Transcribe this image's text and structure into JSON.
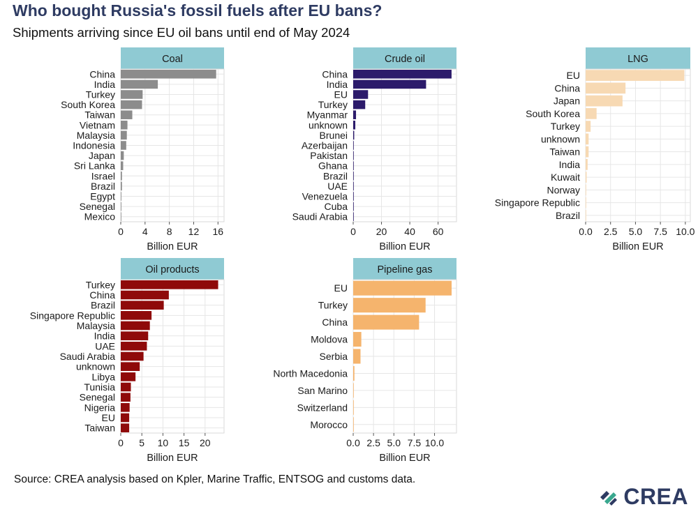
{
  "title": "Who bought Russia's fossil fuels after EU bans?",
  "subtitle": "Shipments arriving since EU oil bans until end of May 2024",
  "source": "Source: CREA analysis based on Kpler, Marine Traffic, ENTSOG and customs data.",
  "logo": {
    "text": "CREA"
  },
  "colors": {
    "strip_bg": "#8fcad3",
    "grid": "#e6e6e6",
    "panel_border": "#d9d9d9",
    "coal": "#8c8c8c",
    "crude_oil": "#2c1b6b",
    "lng": "#f7d9b3",
    "oil_products": "#8f0a0a",
    "pipeline_gas": "#f5b46d",
    "title": "#2e3b62"
  },
  "chart_data": [
    {
      "type": "bar",
      "title": "Coal",
      "xlabel": "Billion EUR",
      "xlim": [
        0,
        17
      ],
      "ticks": [
        0,
        4,
        8,
        12,
        16
      ],
      "tick_labels": [
        "0",
        "4",
        "8",
        "12",
        "16"
      ],
      "color_key": "coal",
      "categories": [
        "China",
        "India",
        "Turkey",
        "South Korea",
        "Taiwan",
        "Vietnam",
        "Malaysia",
        "Indonesia",
        "Japan",
        "Sri Lanka",
        "Israel",
        "Brazil",
        "Egypt",
        "Senegal",
        "Mexico"
      ],
      "values": [
        15.7,
        6.1,
        3.6,
        3.5,
        1.9,
        1.1,
        1.0,
        0.9,
        0.5,
        0.4,
        0.2,
        0.2,
        0.1,
        0.1,
        0.05
      ]
    },
    {
      "type": "bar",
      "title": "Crude oil",
      "xlabel": "Billion EUR",
      "xlim": [
        0,
        73
      ],
      "ticks": [
        0,
        20,
        40,
        60
      ],
      "tick_labels": [
        "0",
        "20",
        "40",
        "60"
      ],
      "color_key": "crude_oil",
      "categories": [
        "China",
        "India",
        "EU",
        "Turkey",
        "Myanmar",
        "unknown",
        "Brunei",
        "Azerbaijan",
        "Pakistan",
        "Ghana",
        "Brazil",
        "UAE",
        "Venezuela",
        "Cuba",
        "Saudi Arabia"
      ],
      "values": [
        69.5,
        51.5,
        10.5,
        8.5,
        2.0,
        1.5,
        0.7,
        0.3,
        0.3,
        0.2,
        0.2,
        0.2,
        0.1,
        0.1,
        0.05
      ]
    },
    {
      "type": "bar",
      "title": "LNG",
      "xlabel": "Billion EUR",
      "xlim": [
        0,
        10.5
      ],
      "ticks": [
        0,
        2.5,
        5,
        7.5,
        10
      ],
      "tick_labels": [
        "0.0",
        "2.5",
        "5.0",
        "7.5",
        "10.0"
      ],
      "color_key": "lng",
      "categories": [
        "EU",
        "China",
        "Japan",
        "South Korea",
        "Turkey",
        "unknown",
        "Taiwan",
        "India",
        "Kuwait",
        "Norway",
        "Singapore Republic",
        "Brazil"
      ],
      "values": [
        9.9,
        4.0,
        3.7,
        1.1,
        0.5,
        0.3,
        0.3,
        0.2,
        0.1,
        0.05,
        0.05,
        0.05
      ]
    },
    {
      "type": "bar",
      "title": "Oil products",
      "xlabel": "Billion EUR",
      "xlim": [
        0,
        24.5
      ],
      "ticks": [
        0,
        5,
        10,
        15,
        20
      ],
      "tick_labels": [
        "0",
        "5",
        "10",
        "15",
        "20"
      ],
      "color_key": "oil_products",
      "categories": [
        "Turkey",
        "China",
        "Brazil",
        "Singapore Republic",
        "Malaysia",
        "India",
        "UAE",
        "Saudi Arabia",
        "unknown",
        "Libya",
        "Tunisia",
        "Senegal",
        "Nigeria",
        "EU",
        "Taiwan"
      ],
      "values": [
        23.1,
        11.4,
        10.2,
        7.3,
        6.9,
        6.5,
        6.2,
        5.4,
        4.5,
        3.5,
        2.4,
        2.3,
        2.1,
        2.0,
        2.0
      ]
    },
    {
      "type": "bar",
      "title": "Pipeline gas",
      "xlabel": "Billion EUR",
      "xlim": [
        0,
        12.7
      ],
      "ticks": [
        0,
        2.5,
        5,
        7.5,
        10
      ],
      "tick_labels": [
        "0.0",
        "2.5",
        "5.0",
        "7.5",
        "10.0"
      ],
      "color_key": "pipeline_gas",
      "categories": [
        "EU",
        "Turkey",
        "China",
        "Moldova",
        "Serbia",
        "North Macedonia",
        "San Marino",
        "Switzerland",
        "Morocco"
      ],
      "values": [
        12.1,
        8.9,
        8.1,
        1.0,
        0.9,
        0.15,
        0.05,
        0.05,
        0.05
      ]
    }
  ]
}
